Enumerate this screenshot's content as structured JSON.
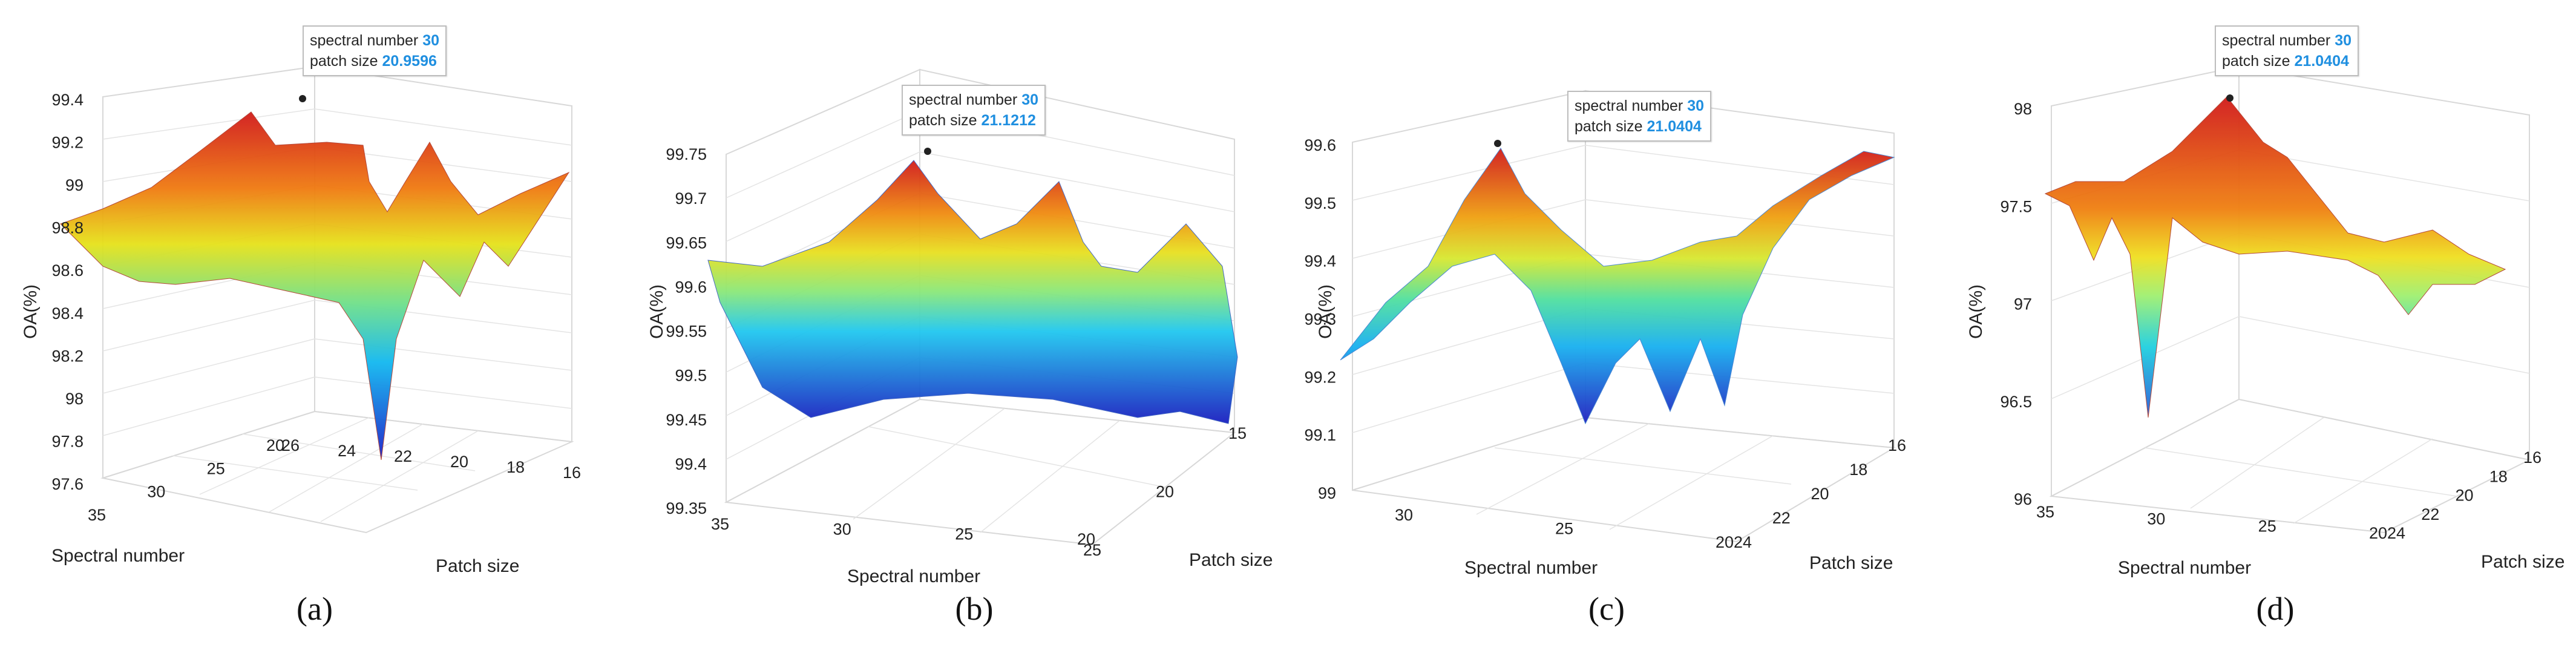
{
  "chart_data": [
    {
      "id": "a",
      "type": "surface3d",
      "caption": "(a)",
      "zlabel": "OA(%)",
      "xlabel": "Spectral number",
      "ylabel": "Patch size",
      "zlim": [
        97.6,
        99.4
      ],
      "zticks": [
        "97.6",
        "97.8",
        "98",
        "98.2",
        "98.4",
        "98.6",
        "98.8",
        "99",
        "99.2",
        "99.4"
      ],
      "xticks": [
        "35",
        "30",
        "25",
        "20"
      ],
      "yticks": [
        "26",
        "24",
        "22",
        "20",
        "18",
        "16"
      ],
      "tooltip": {
        "spectral_label": "spectral number",
        "spectral_value": "30",
        "patch_label": "patch size",
        "patch_value": "20.9596"
      },
      "peak": {
        "spectral_number": 30,
        "patch_size": 20.9596,
        "oa": 99.38
      },
      "min_oa": 97.65
    },
    {
      "id": "b",
      "type": "surface3d",
      "caption": "(b)",
      "zlabel": "OA(%)",
      "xlabel": "Spectral number",
      "ylabel": "Patch size",
      "zlim": [
        99.35,
        99.75
      ],
      "zticks": [
        "99.35",
        "99.4",
        "99.45",
        "99.5",
        "99.55",
        "99.6",
        "99.65",
        "99.7",
        "99.75"
      ],
      "xticks": [
        "35",
        "30",
        "25",
        "20"
      ],
      "yticks": [
        "25",
        "20",
        "15"
      ],
      "tooltip": {
        "spectral_label": "spectral number",
        "spectral_value": "30",
        "patch_label": "patch size",
        "patch_value": "21.1212"
      },
      "peak": {
        "spectral_number": 30,
        "patch_size": 21.1212,
        "oa": 99.73
      },
      "min_oa": 99.41
    },
    {
      "id": "c",
      "type": "surface3d",
      "caption": "(c)",
      "zlabel": "OA(%)",
      "xlabel": "Spectral number",
      "ylabel": "Patch size",
      "zlim": [
        99.0,
        99.6
      ],
      "zticks": [
        "99",
        "99.1",
        "99.2",
        "99.3",
        "99.4",
        "99.5",
        "99.6"
      ],
      "xticks": [
        "30",
        "25",
        "20"
      ],
      "yticks": [
        "24",
        "22",
        "20",
        "18",
        "16"
      ],
      "tooltip": {
        "spectral_label": "spectral number",
        "spectral_value": "30",
        "patch_label": "patch size",
        "patch_value": "21.0404"
      },
      "peak": {
        "spectral_number": 30,
        "patch_size": 21.0404,
        "oa": 99.64
      },
      "min_oa": 99.02
    },
    {
      "id": "d",
      "type": "surface3d",
      "caption": "(d)",
      "zlabel": "OA(%)",
      "xlabel": "Spectral number",
      "ylabel": "Patch size",
      "zlim": [
        96.0,
        98.0
      ],
      "zticks": [
        "96",
        "96.5",
        "97",
        "97.5",
        "98"
      ],
      "xticks": [
        "35",
        "30",
        "25",
        "20"
      ],
      "yticks": [
        "24",
        "22",
        "20",
        "18",
        "16"
      ],
      "tooltip": {
        "spectral_label": "spectral number",
        "spectral_value": "30",
        "patch_label": "patch size",
        "patch_value": "21.0404"
      },
      "peak": {
        "spectral_number": 30,
        "patch_size": 21.0404,
        "oa": 98.0
      },
      "min_oa": 96.4
    }
  ]
}
